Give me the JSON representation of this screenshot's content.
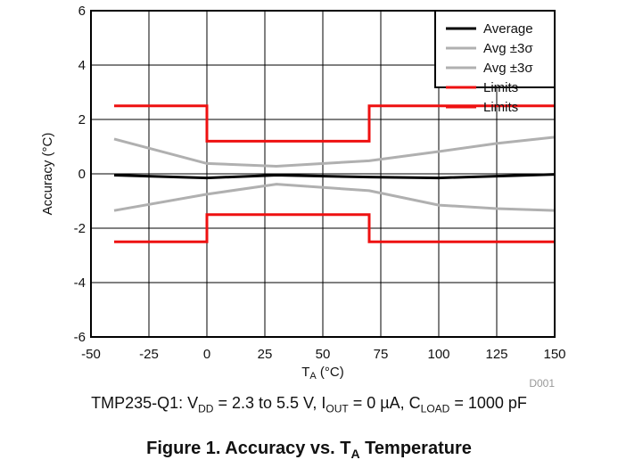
{
  "chart_data": {
    "type": "line",
    "xlabel_main": "T",
    "xlabel_sub": "A",
    "xlabel_unit": " (°C)",
    "ylabel": "Accuracy (°C)",
    "xlim": [
      -50,
      150
    ],
    "ylim": [
      -6,
      6
    ],
    "xticks": [
      -50,
      -25,
      0,
      25,
      50,
      75,
      100,
      125,
      150
    ],
    "yticks": [
      -6,
      -4,
      -2,
      0,
      2,
      4,
      6
    ],
    "grid": true,
    "legend_position": "top-right",
    "watermark": "D001",
    "series": [
      {
        "name": "Average",
        "color": "#000000",
        "x": [
          -40,
          0,
          30,
          70,
          100,
          150
        ],
        "y": [
          -0.05,
          -0.15,
          -0.05,
          -0.12,
          -0.15,
          -0.02
        ]
      },
      {
        "name": "Avg ±3σ",
        "color": "#b0b0b0",
        "x": [
          -40,
          0,
          30,
          70,
          100,
          125,
          150
        ],
        "y": [
          1.28,
          0.38,
          0.28,
          0.48,
          0.82,
          1.12,
          1.35
        ]
      },
      {
        "name": "Avg ±3σ",
        "show_in_legend": false,
        "color": "#b0b0b0",
        "x": [
          -40,
          0,
          30,
          70,
          100,
          125,
          150
        ],
        "y": [
          -1.35,
          -0.75,
          -0.38,
          -0.62,
          -1.15,
          -1.28,
          -1.35
        ]
      },
      {
        "name": "Limits",
        "color": "#ee1111",
        "x": [
          -40,
          0,
          0,
          70,
          70,
          150
        ],
        "y": [
          2.5,
          2.5,
          1.2,
          1.2,
          2.5,
          2.5
        ]
      },
      {
        "name": "Limits",
        "show_in_legend": false,
        "color": "#ee1111",
        "x": [
          -40,
          0,
          0,
          70,
          70,
          150
        ],
        "y": [
          -2.5,
          -2.5,
          -1.5,
          -1.5,
          -2.5,
          -2.5
        ]
      }
    ]
  },
  "caption": {
    "p1": "TMP235-Q1: V",
    "s1": "DD",
    "p2": " = 2.3 to 5.5 V, I",
    "s2": "OUT",
    "p3": " = 0 µA, C",
    "s3": "LOAD",
    "p4": " = 1000 pF"
  },
  "figure_title": {
    "prefix": "Figure 1. Accuracy vs. T",
    "sub": "A",
    "suffix": " Temperature"
  }
}
